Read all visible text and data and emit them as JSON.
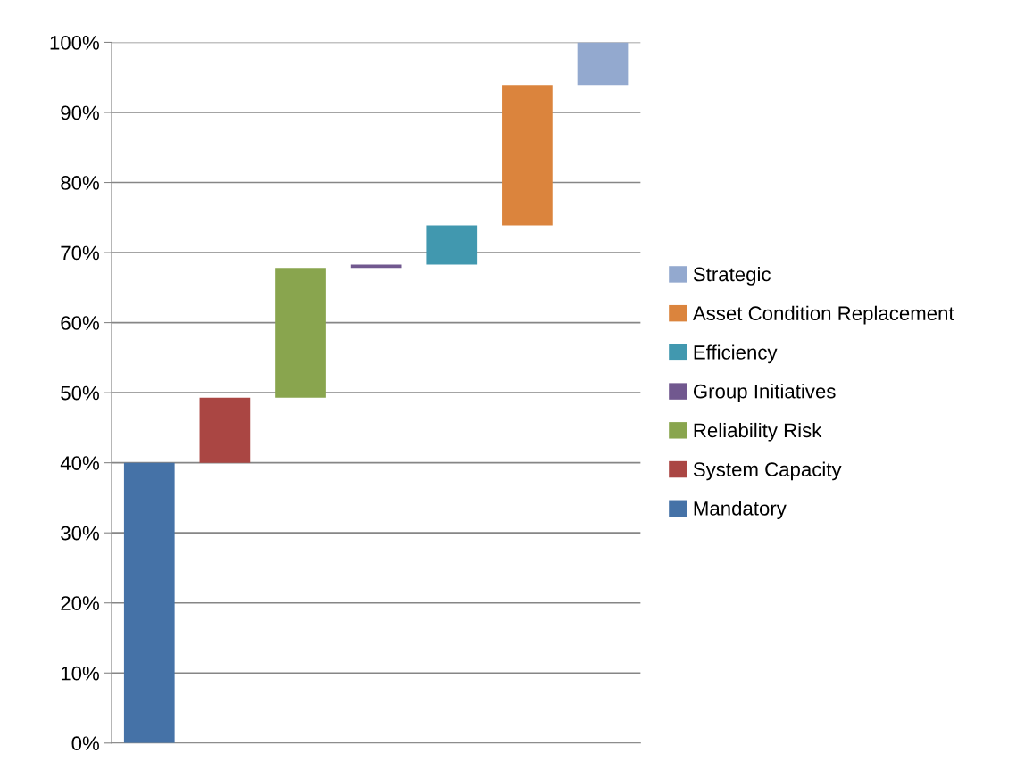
{
  "chart_data": {
    "type": "bar",
    "categories": [
      null,
      null,
      null,
      null,
      null,
      null,
      null
    ],
    "series": [
      {
        "name": "Mandatory",
        "color": "#4572a7",
        "values": [
          40,
          null,
          null,
          null,
          null,
          null,
          null
        ],
        "base": [
          0,
          null,
          null,
          null,
          null,
          null,
          null
        ]
      },
      {
        "name": "System Capacity",
        "color": "#aa4643",
        "values": [
          null,
          9.3,
          null,
          null,
          null,
          null,
          null
        ],
        "base": [
          null,
          40,
          null,
          null,
          null,
          null,
          null
        ]
      },
      {
        "name": "Reliability Risk",
        "color": "#89a54e",
        "values": [
          null,
          null,
          18.5,
          null,
          null,
          null,
          null
        ],
        "base": [
          null,
          null,
          49.3,
          null,
          null,
          null,
          null
        ]
      },
      {
        "name": "Group Initiatives",
        "color": "#71588f",
        "values": [
          null,
          null,
          null,
          0.5,
          null,
          null,
          null
        ],
        "base": [
          null,
          null,
          null,
          67.8,
          null,
          null,
          null
        ]
      },
      {
        "name": "Efficiency",
        "color": "#4198af",
        "values": [
          null,
          null,
          null,
          null,
          5.6,
          null,
          null
        ],
        "base": [
          null,
          null,
          null,
          null,
          68.3,
          null,
          null
        ]
      },
      {
        "name": "Asset Condition Replacement",
        "color": "#db843d",
        "values": [
          null,
          null,
          null,
          null,
          null,
          20,
          null
        ],
        "base": [
          null,
          null,
          null,
          null,
          null,
          73.9,
          null
        ]
      },
      {
        "name": "Strategic",
        "color": "#93a9cf",
        "values": [
          null,
          null,
          null,
          null,
          null,
          null,
          6.1
        ],
        "base": [
          null,
          null,
          null,
          null,
          null,
          null,
          93.9
        ]
      }
    ],
    "ylim": [
      0,
      100
    ],
    "yticks": [
      {
        "value": 0,
        "label": "0%"
      },
      {
        "value": 10,
        "label": "10%"
      },
      {
        "value": 20,
        "label": "20%"
      },
      {
        "value": 30,
        "label": "30%"
      },
      {
        "value": 40,
        "label": "40%"
      },
      {
        "value": 50,
        "label": "50%"
      },
      {
        "value": 60,
        "label": "60%"
      },
      {
        "value": 70,
        "label": "70%"
      },
      {
        "value": 80,
        "label": "80%"
      },
      {
        "value": 90,
        "label": "90%"
      },
      {
        "value": 100,
        "label": "100%"
      }
    ],
    "grid": "y",
    "legend": "right",
    "tick_labels": "y"
  }
}
